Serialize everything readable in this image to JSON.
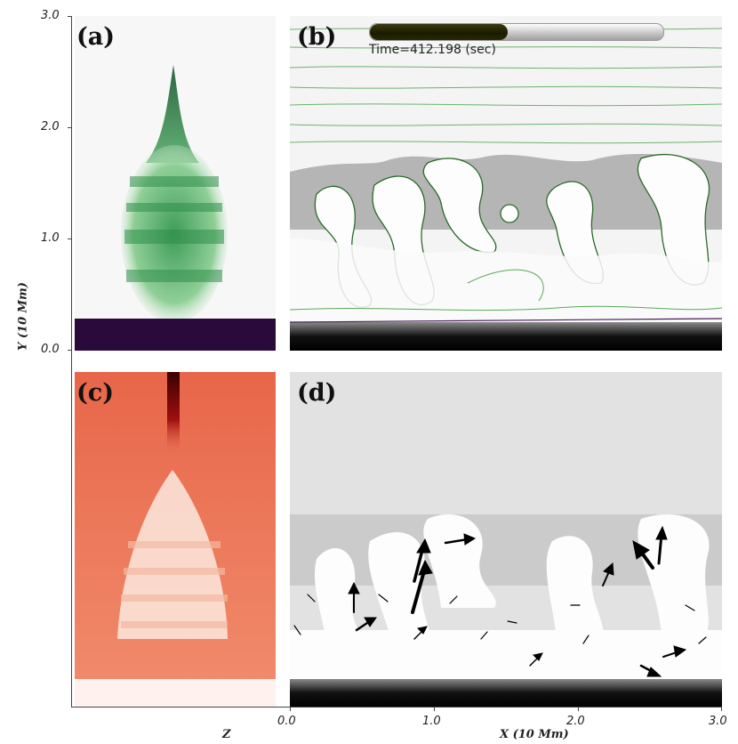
{
  "panels": {
    "a": "(a)",
    "b": "(b)",
    "c": "(c)",
    "d": "(d)"
  },
  "time_label": "Time=412.198 (sec)",
  "time_progress": 0.47,
  "axes": {
    "y_ticks": [
      "3.0",
      "2.0",
      "1.0",
      "0.0"
    ],
    "x_ticks": [
      "0.0",
      "1.0",
      "2.0",
      "3.0"
    ],
    "y_title": "Y (10 Mm)",
    "x_title": "X (10 Mm)",
    "z_title": "Z"
  },
  "colors": {
    "green": "#0a5a2a",
    "purple": "#2a0a3a",
    "red": "#e8553a",
    "darkred": "#4a0000"
  }
}
